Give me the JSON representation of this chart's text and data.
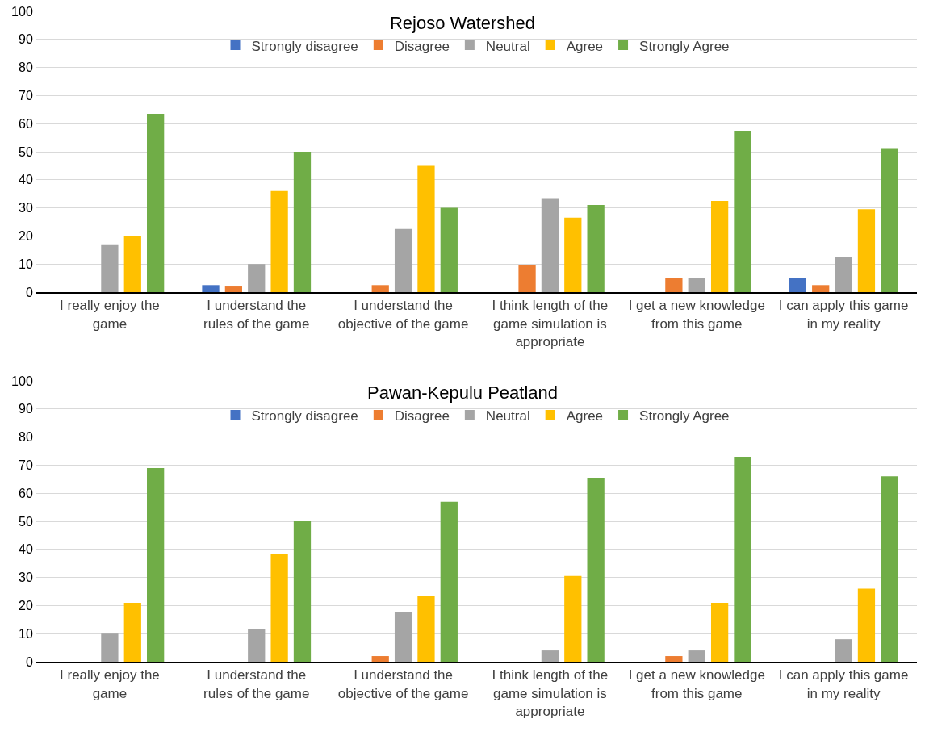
{
  "chart_data": [
    {
      "type": "bar",
      "title": "Rejoso Watershed",
      "categories": [
        "I really enjoy the game",
        "I understand the rules of the game",
        "I understand the objective of the game",
        "I think length of the game simulation is appropriate",
        "I get a new knowledge from this game",
        "I can apply this game in my reality"
      ],
      "series": [
        {
          "name": "Strongly disagree",
          "color": "#4472c4",
          "values": [
            0,
            2.5,
            0,
            0,
            0,
            5
          ]
        },
        {
          "name": "Disagree",
          "color": "#ed7d31",
          "values": [
            0,
            2,
            2.5,
            9.5,
            5,
            2.5
          ]
        },
        {
          "name": "Neutral",
          "color": "#a5a5a5",
          "values": [
            17,
            10,
            22.5,
            33.5,
            5,
            12.5
          ]
        },
        {
          "name": "Agree",
          "color": "#ffc000",
          "values": [
            20,
            36,
            45,
            26.5,
            32.5,
            29.5
          ]
        },
        {
          "name": "Strongly Agree",
          "color": "#70ad47",
          "values": [
            63.5,
            50,
            30,
            31,
            57.5,
            51
          ]
        }
      ],
      "ylim": [
        0,
        100
      ],
      "yticks": [
        0,
        10,
        20,
        30,
        40,
        50,
        60,
        70,
        80,
        90,
        100
      ],
      "grid": "y",
      "legend": "top"
    },
    {
      "type": "bar",
      "title": "Pawan-Kepulu Peatland",
      "categories": [
        "I really enjoy the game",
        "I understand the rules of the game",
        "I understand the objective of the game",
        "I think length of the game simulation is appropriate",
        "I get a new knowledge from this game",
        "I can apply this game in my reality"
      ],
      "series": [
        {
          "name": "Strongly disagree",
          "color": "#4472c4",
          "values": [
            0,
            0,
            0,
            0,
            0,
            0
          ]
        },
        {
          "name": "Disagree",
          "color": "#ed7d31",
          "values": [
            0,
            0,
            2,
            0,
            2,
            0
          ]
        },
        {
          "name": "Neutral",
          "color": "#a5a5a5",
          "values": [
            10,
            11.5,
            17.5,
            4,
            4,
            8
          ]
        },
        {
          "name": "Agree",
          "color": "#ffc000",
          "values": [
            21,
            38.5,
            23.5,
            30.5,
            21,
            26
          ]
        },
        {
          "name": "Strongly Agree",
          "color": "#70ad47",
          "values": [
            69,
            50,
            57,
            65.5,
            73,
            66
          ]
        }
      ],
      "ylim": [
        0,
        100
      ],
      "yticks": [
        0,
        10,
        20,
        30,
        40,
        50,
        60,
        70,
        80,
        90,
        100
      ],
      "grid": "y",
      "legend": "top"
    }
  ]
}
